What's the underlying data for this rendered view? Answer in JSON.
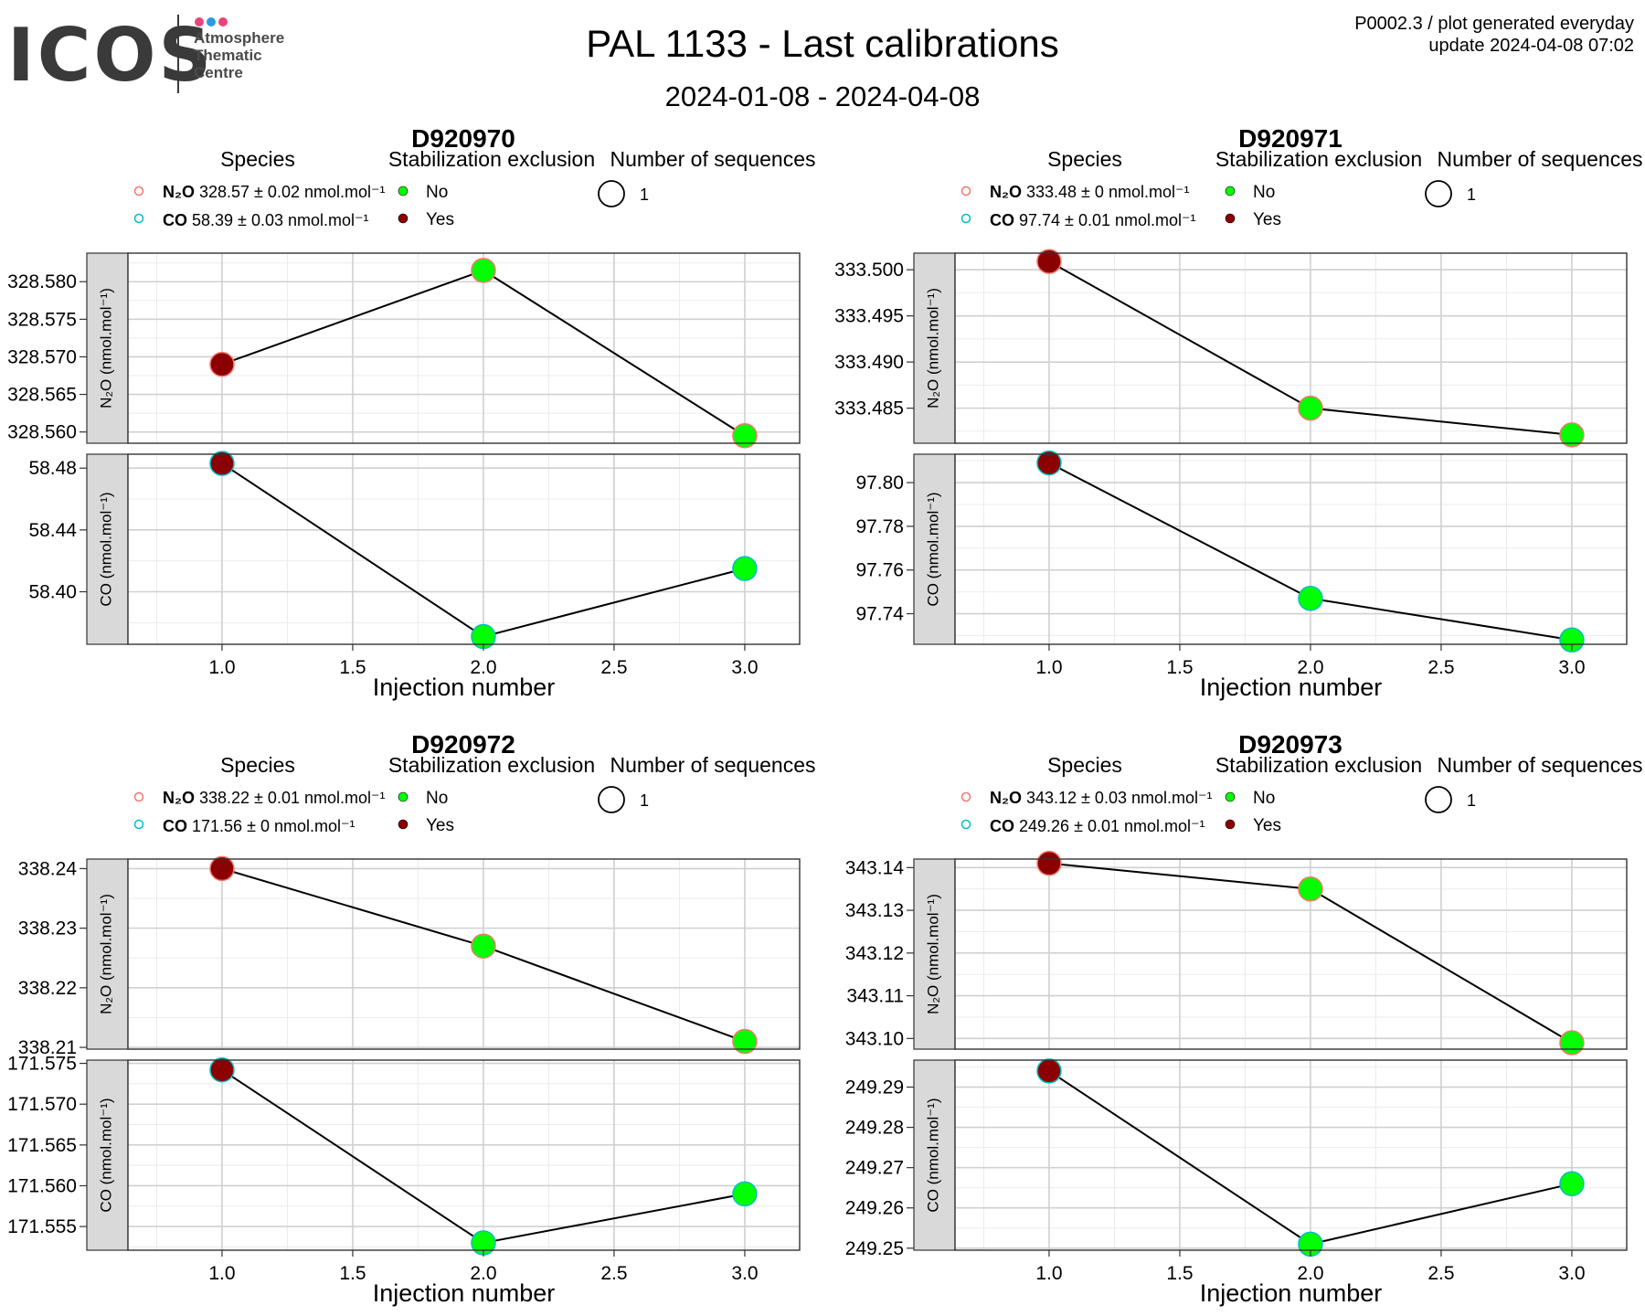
{
  "header": {
    "logo": {
      "word": "ICOS",
      "line1": "Atmosphere",
      "line2": "Thematic",
      "line3": "Centre",
      "dot_colors": [
        "#e8457a",
        "#2b9be0",
        "#e8457a"
      ]
    },
    "title": "PAL 1133 - Last calibrations",
    "period": "2024-01-08 - 2024-04-08",
    "version_line1": "P0002.3 / plot generated everyday",
    "version_line2": "update  2024-04-08 07:02"
  },
  "colors": {
    "no": "#00ff00",
    "yes": "#8b0000",
    "n2o_outline": "#f8766d",
    "co_outline": "#00bfc4"
  },
  "legend_titles": {
    "species": "Species",
    "stab": "Stabilization exclusion",
    "seq": "Number of sequences",
    "no": "No",
    "yes": "Yes",
    "seq_value": "1"
  },
  "x_axis_label": "Injection number",
  "strip_labels": {
    "n2o": "N₂O (nmol.mol⁻¹)",
    "co": "CO (nmol.mol⁻¹)"
  },
  "chart_data": [
    {
      "type": "line",
      "title": "D920970",
      "legend": {
        "n2o": {
          "label": "N₂O",
          "value": "328.57 ± 0.02 nmol.mol⁻¹"
        },
        "co": {
          "label": "CO",
          "value": "58.39 ± 0.03 nmol.mol⁻¹"
        }
      },
      "x": [
        1,
        2,
        3
      ],
      "x_ticks": [
        "1.0",
        "1.5",
        "2.0",
        "2.5",
        "3.0"
      ],
      "n2o": {
        "values": [
          328.569,
          328.5815,
          328.5595
        ],
        "excluded": [
          "Yes",
          "No",
          "No"
        ],
        "ylim": [
          328.5585,
          328.5838
        ],
        "ticks": [
          328.58,
          328.575,
          328.57,
          328.565,
          328.56
        ],
        "tick_labels": [
          "328.580",
          "328.575",
          "328.570",
          "328.565",
          "328.560"
        ]
      },
      "co": {
        "values": [
          58.483,
          58.371,
          58.415
        ],
        "excluded": [
          "Yes",
          "No",
          "No"
        ],
        "ylim": [
          58.366,
          58.489
        ],
        "ticks": [
          58.48,
          58.44,
          58.4
        ],
        "tick_labels": [
          "58.48",
          "58.44",
          "58.40"
        ]
      }
    },
    {
      "type": "line",
      "title": "D920971",
      "legend": {
        "n2o": {
          "label": "N₂O",
          "value": "333.48 ± 0 nmol.mol⁻¹"
        },
        "co": {
          "label": "CO",
          "value": "97.74 ± 0.01 nmol.mol⁻¹"
        }
      },
      "x": [
        1,
        2,
        3
      ],
      "x_ticks": [
        "1.0",
        "1.5",
        "2.0",
        "2.5",
        "3.0"
      ],
      "n2o": {
        "values": [
          333.5009,
          333.485,
          333.4821
        ],
        "excluded": [
          "Yes",
          "No",
          "No"
        ],
        "ylim": [
          333.4812,
          333.5018
        ],
        "ticks": [
          333.5,
          333.495,
          333.49,
          333.485
        ],
        "tick_labels": [
          "333.500",
          "333.495",
          "333.490",
          "333.485"
        ]
      },
      "co": {
        "values": [
          97.809,
          97.747,
          97.728
        ],
        "excluded": [
          "Yes",
          "No",
          "No"
        ],
        "ylim": [
          97.726,
          97.813
        ],
        "ticks": [
          97.8,
          97.78,
          97.76,
          97.74
        ],
        "tick_labels": [
          "97.80",
          "97.78",
          "97.76",
          "97.74"
        ]
      }
    },
    {
      "type": "line",
      "title": "D920972",
      "legend": {
        "n2o": {
          "label": "N₂O",
          "value": "338.22 ± 0.01 nmol.mol⁻¹"
        },
        "co": {
          "label": "CO",
          "value": "171.56 ± 0 nmol.mol⁻¹"
        }
      },
      "x": [
        1,
        2,
        3
      ],
      "x_ticks": [
        "1.0",
        "1.5",
        "2.0",
        "2.5",
        "3.0"
      ],
      "n2o": {
        "values": [
          338.24,
          338.227,
          338.211
        ],
        "excluded": [
          "Yes",
          "No",
          "No"
        ],
        "ylim": [
          338.2097,
          338.2416
        ],
        "ticks": [
          338.24,
          338.23,
          338.22,
          338.21
        ],
        "tick_labels": [
          "338.24",
          "338.23",
          "338.22",
          "338.21"
        ]
      },
      "co": {
        "values": [
          171.5742,
          171.553,
          171.559
        ],
        "excluded": [
          "Yes",
          "No",
          "No"
        ],
        "ylim": [
          171.5521,
          171.5754
        ],
        "ticks": [
          171.575,
          171.57,
          171.565,
          171.56,
          171.555
        ],
        "tick_labels": [
          "171.575",
          "171.570",
          "171.565",
          "171.560",
          "171.555"
        ]
      }
    },
    {
      "type": "line",
      "title": "D920973",
      "legend": {
        "n2o": {
          "label": "N₂O",
          "value": "343.12 ± 0.03 nmol.mol⁻¹"
        },
        "co": {
          "label": "CO",
          "value": "249.26 ± 0.01 nmol.mol⁻¹"
        }
      },
      "x": [
        1,
        2,
        3
      ],
      "x_ticks": [
        "1.0",
        "1.5",
        "2.0",
        "2.5",
        "3.0"
      ],
      "n2o": {
        "values": [
          343.141,
          343.135,
          343.099
        ],
        "excluded": [
          "Yes",
          "No",
          "No"
        ],
        "ylim": [
          343.0975,
          343.142
        ],
        "ticks": [
          343.14,
          343.13,
          343.12,
          343.11,
          343.1
        ],
        "tick_labels": [
          "343.14",
          "343.13",
          "343.12",
          "343.11",
          "343.10"
        ]
      },
      "co": {
        "values": [
          249.294,
          249.251,
          249.266
        ],
        "excluded": [
          "Yes",
          "No",
          "No"
        ],
        "ylim": [
          249.2495,
          249.2967
        ],
        "ticks": [
          249.29,
          249.28,
          249.27,
          249.26,
          249.25
        ],
        "tick_labels": [
          "249.29",
          "249.28",
          "249.27",
          "249.26",
          "249.25"
        ]
      }
    }
  ]
}
